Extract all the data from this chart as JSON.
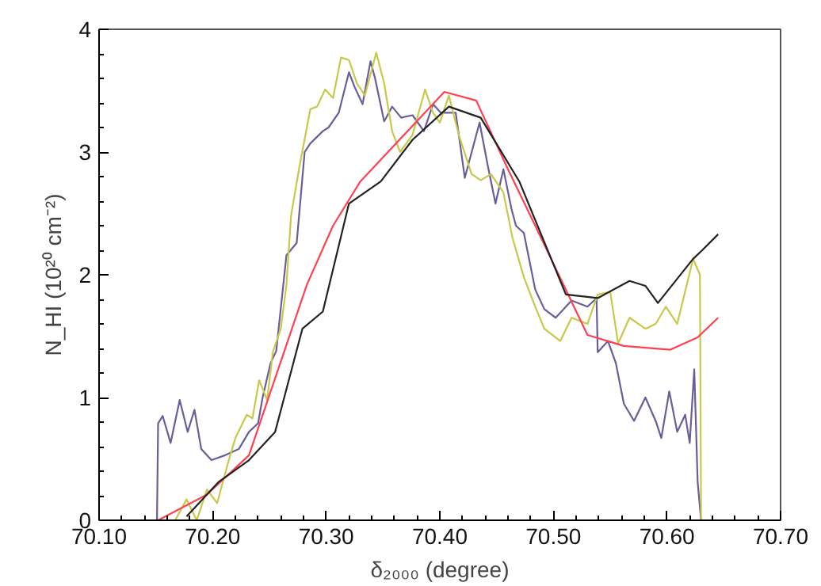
{
  "chart_data": {
    "type": "line",
    "xlabel": "δ₂₀₀₀ (degree)",
    "ylabel": "N_HI (10²⁰ cm⁻²)",
    "xlim": [
      70.1,
      70.7
    ],
    "xticks": [
      {
        "value": 70.1,
        "label": "70.10"
      },
      {
        "value": 70.2,
        "label": "70.20"
      },
      {
        "value": 70.3,
        "label": "70.30"
      },
      {
        "value": 70.4,
        "label": "70.40"
      },
      {
        "value": 70.5,
        "label": "70.50"
      },
      {
        "value": 70.6,
        "label": "70.60"
      },
      {
        "value": 70.7,
        "label": "70.70"
      }
    ],
    "ylim": [
      0,
      4
    ],
    "yticks": [
      0,
      1,
      2,
      3,
      4
    ],
    "grid": false,
    "line_style": "solid",
    "marker": "none",
    "series": [
      {
        "color": "#6a5d9a",
        "x": [
          70.151,
          70.152,
          70.156,
          70.163,
          70.171,
          70.178,
          70.184,
          70.19,
          70.199,
          70.211,
          70.223,
          70.232,
          70.24,
          70.244,
          70.251,
          70.256,
          70.265,
          70.274,
          70.281,
          70.286,
          70.297,
          70.302,
          70.311,
          70.32,
          70.325,
          70.332,
          70.339,
          70.343,
          70.351,
          70.358,
          70.366,
          70.376,
          70.386,
          70.394,
          70.401,
          70.414,
          70.422,
          70.435,
          70.442,
          70.449,
          70.456,
          70.463,
          70.467,
          70.474,
          70.484,
          70.492,
          70.502,
          70.516,
          70.53,
          70.538,
          70.539,
          70.548,
          70.555,
          70.562,
          70.571,
          70.581,
          70.59,
          70.595,
          70.602,
          70.609,
          70.616,
          70.62,
          70.624,
          70.627,
          70.63
        ],
        "values": [
          0,
          0.79,
          0.85,
          0.63,
          0.98,
          0.72,
          0.9,
          0.58,
          0.49,
          0.53,
          0.58,
          0.72,
          0.79,
          1.0,
          1.28,
          1.38,
          2.16,
          2.26,
          3.0,
          3.07,
          3.17,
          3.2,
          3.32,
          3.65,
          3.53,
          3.39,
          3.74,
          3.6,
          3.25,
          3.37,
          3.28,
          3.3,
          3.17,
          3.39,
          3.32,
          3.32,
          2.79,
          3.24,
          2.9,
          2.58,
          2.86,
          2.54,
          2.4,
          2.34,
          1.88,
          1.72,
          1.65,
          1.79,
          1.74,
          1.81,
          1.37,
          1.46,
          1.28,
          0.95,
          0.81,
          1.0,
          0.81,
          0.67,
          1.05,
          0.72,
          0.86,
          0.63,
          1.23,
          0.31,
          0
        ]
      },
      {
        "color": "#c8c84a",
        "x": [
          70.167,
          70.177,
          70.186,
          70.195,
          70.204,
          70.213,
          70.22,
          70.23,
          70.235,
          70.241,
          70.248,
          70.253,
          70.26,
          70.265,
          70.269,
          70.276,
          70.286,
          70.292,
          70.299,
          70.306,
          70.313,
          70.32,
          70.327,
          70.334,
          70.344,
          70.351,
          70.358,
          70.365,
          70.376,
          70.387,
          70.394,
          70.4,
          70.408,
          70.417,
          70.428,
          70.436,
          70.445,
          70.456,
          70.464,
          70.474,
          70.484,
          70.492,
          70.506,
          70.516,
          70.53,
          70.539,
          70.55,
          70.557,
          70.567,
          70.581,
          70.59,
          70.599,
          70.609,
          70.623,
          70.629,
          70.63
        ],
        "values": [
          0,
          0.17,
          0,
          0.25,
          0.14,
          0.45,
          0.67,
          0.86,
          0.83,
          1.14,
          0.98,
          1.37,
          1.56,
          1.92,
          2.48,
          2.86,
          3.35,
          3.37,
          3.51,
          3.44,
          3.77,
          3.75,
          3.56,
          3.46,
          3.81,
          3.56,
          3.17,
          3.0,
          3.14,
          3.51,
          3.32,
          3.24,
          3.46,
          3.13,
          2.82,
          2.77,
          2.82,
          2.67,
          2.3,
          1.98,
          1.74,
          1.56,
          1.46,
          1.65,
          1.6,
          1.84,
          1.86,
          1.44,
          1.65,
          1.56,
          1.6,
          1.74,
          1.6,
          2.13,
          2.0,
          0
        ]
      },
      {
        "color": "#ff4050",
        "x": [
          70.152,
          70.195,
          70.232,
          70.283,
          70.306,
          70.33,
          70.404,
          70.432,
          70.46,
          70.484,
          70.53,
          70.562,
          70.603,
          70.627,
          70.645
        ],
        "values": [
          0,
          0.21,
          0.53,
          1.92,
          2.4,
          2.76,
          3.49,
          3.42,
          2.86,
          2.4,
          1.51,
          1.42,
          1.39,
          1.49,
          1.65
        ]
      },
      {
        "color": "#222222",
        "x": [
          70.177,
          70.205,
          70.232,
          70.255,
          70.279,
          70.297,
          70.32,
          70.348,
          70.376,
          70.408,
          70.436,
          70.47,
          70.511,
          70.539,
          70.567,
          70.581,
          70.592,
          70.623,
          70.631,
          70.645
        ],
        "values": [
          0.03,
          0.31,
          0.49,
          0.72,
          1.56,
          1.7,
          2.58,
          2.76,
          3.1,
          3.37,
          3.28,
          2.76,
          1.84,
          1.81,
          1.95,
          1.91,
          1.77,
          2.13,
          2.2,
          2.33
        ]
      }
    ]
  }
}
